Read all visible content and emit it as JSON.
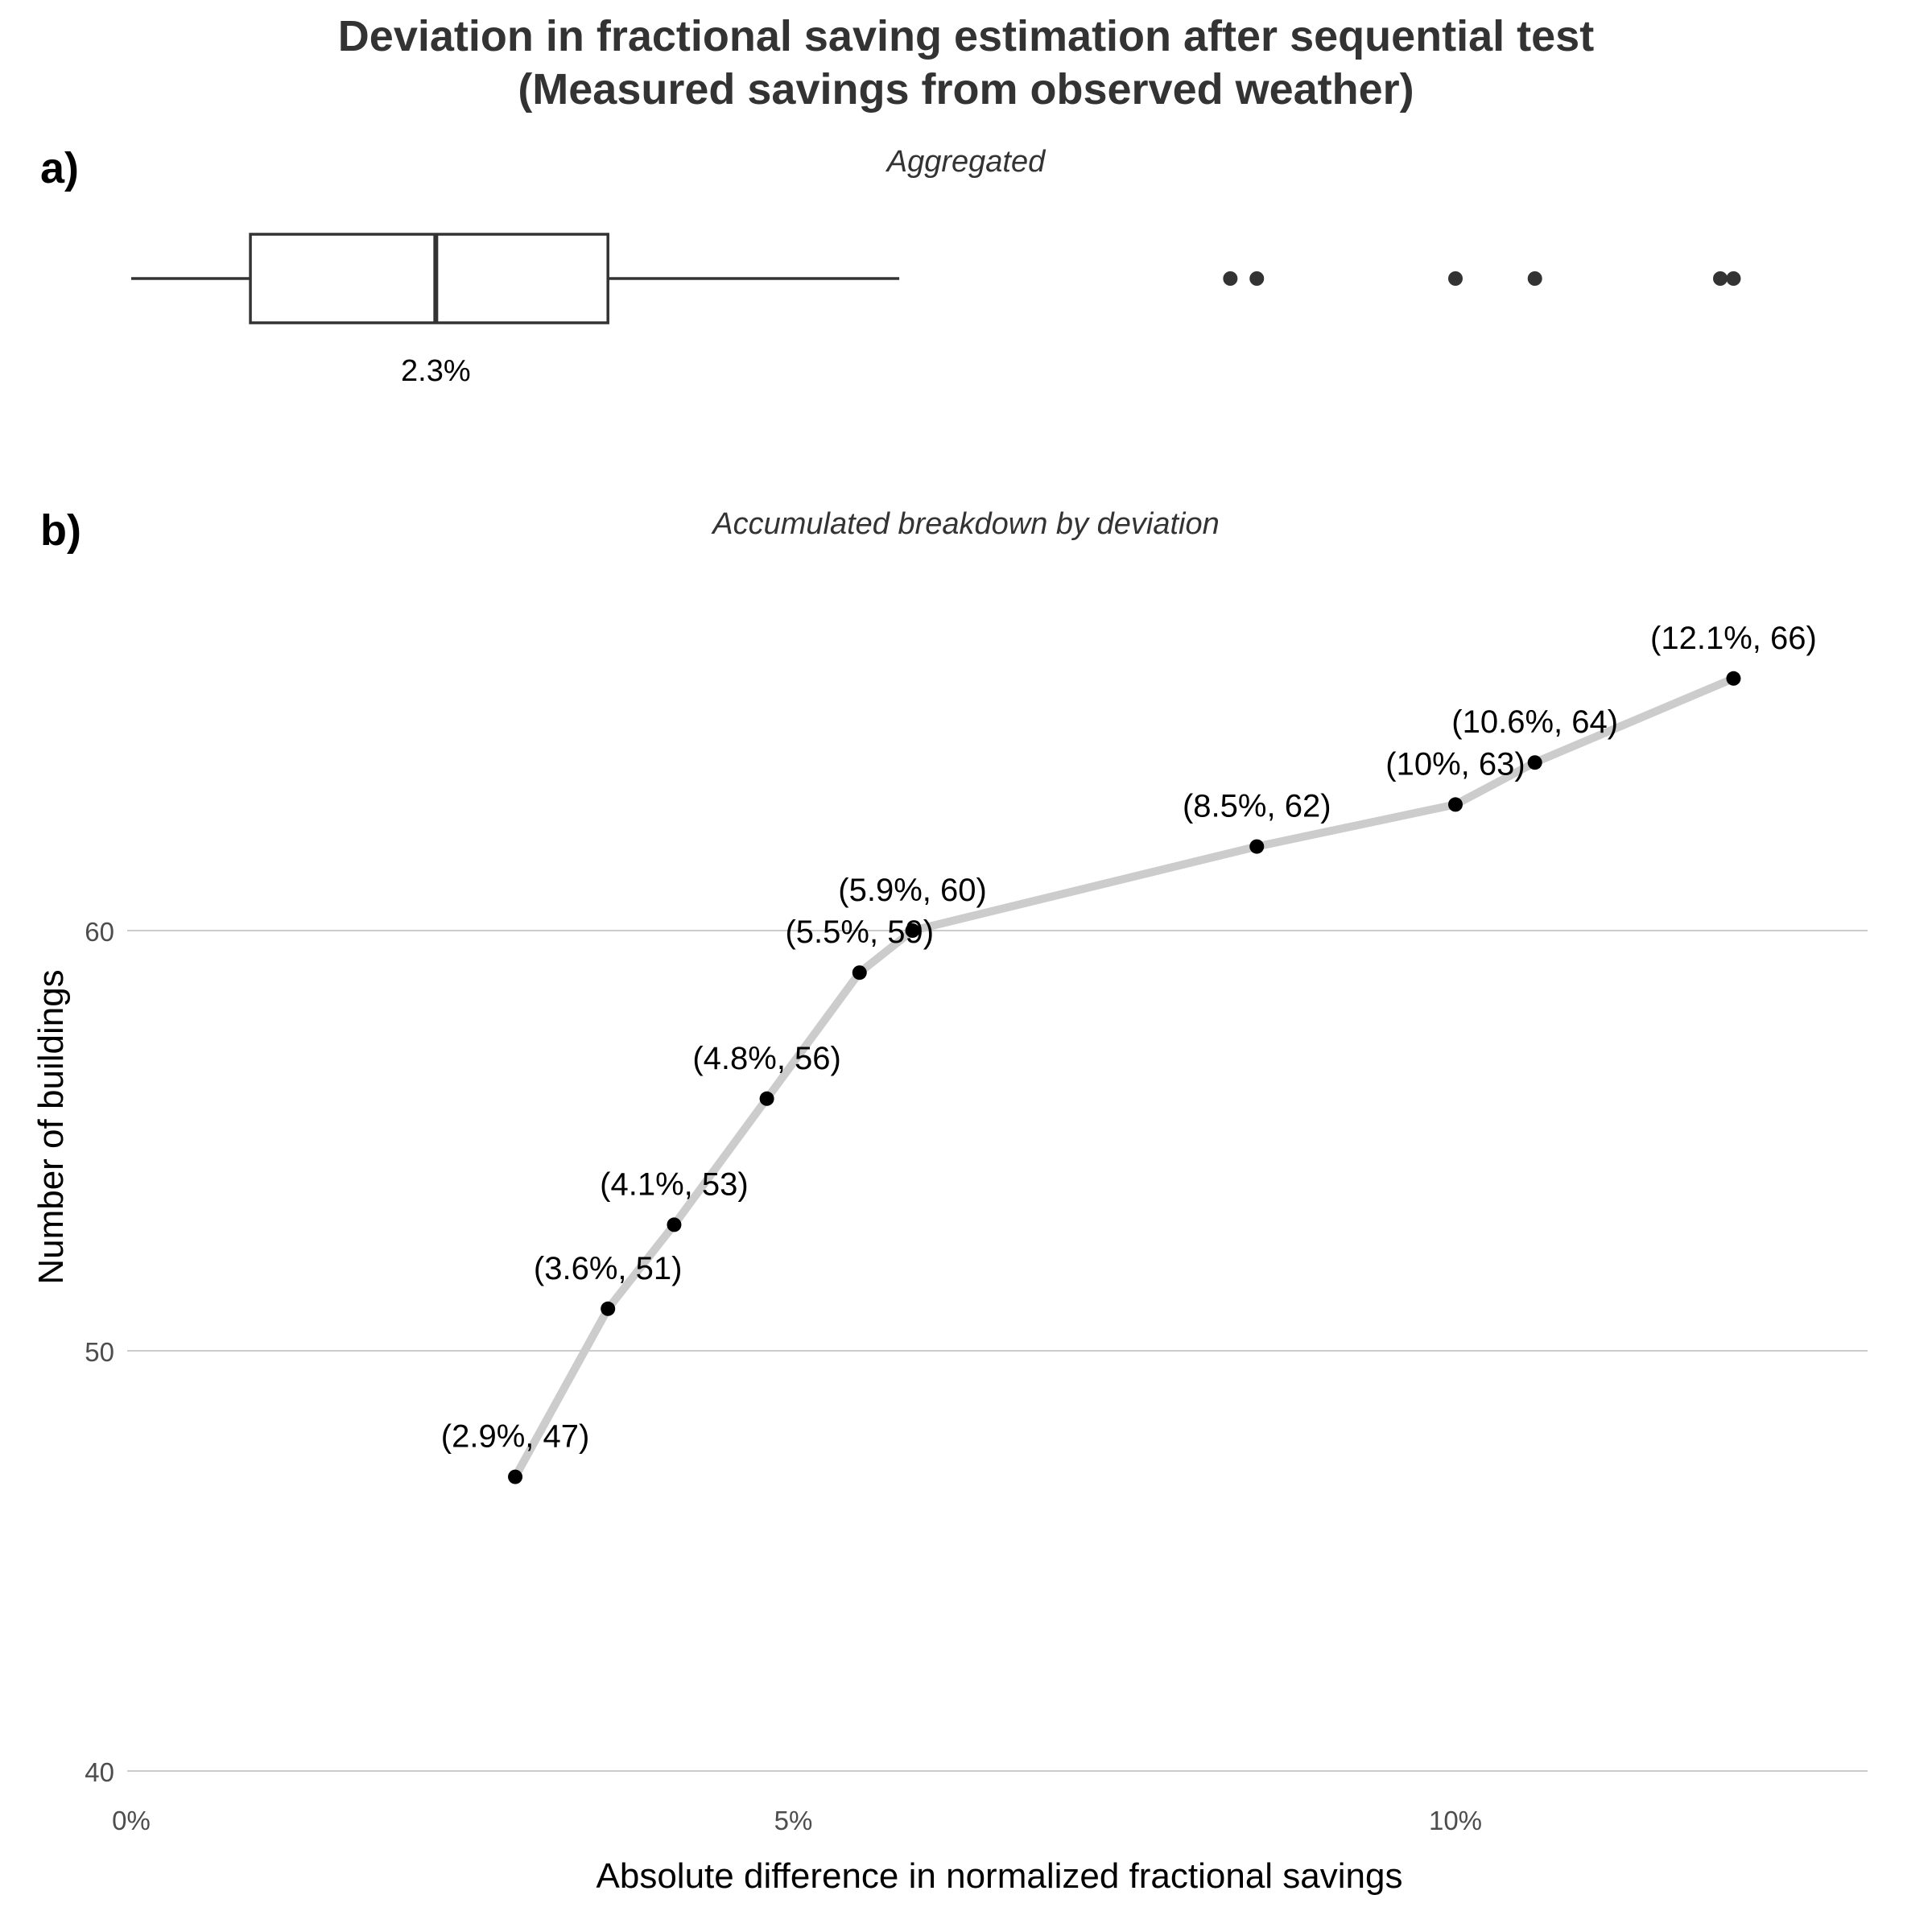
{
  "title_line1": "Deviation in fractional saving estimation after sequential test",
  "title_line2": "(Measured savings from observed weather)",
  "panel_a": {
    "tag": "a)",
    "subtitle": "Aggregated",
    "median_label": "2.3%"
  },
  "panel_b": {
    "tag": "b)",
    "subtitle": "Accumulated breakdown by deviation",
    "xlabel": "Absolute difference in normalized fractional savings",
    "ylabel": "Number of buildings"
  },
  "colors": {
    "text": "#333333",
    "box_stroke": "#333333",
    "line": "#cccccc",
    "point": "#000000",
    "grid": "#cccccc",
    "tick_text": "#4d4d4d"
  },
  "chart_data": [
    {
      "type": "box",
      "title": "Aggregated",
      "x_axis": "shared with panel b",
      "whisker_low": 0.0,
      "q1": 0.9,
      "median": 2.3,
      "q3": 3.6,
      "whisker_high": 5.8,
      "outliers": [
        8.3,
        8.5,
        10.0,
        10.6,
        12.0,
        12.1
      ],
      "median_label": "2.3%"
    },
    {
      "type": "line",
      "title": "Accumulated breakdown by deviation",
      "xlabel": "Absolute difference in normalized fractional savings",
      "ylabel": "Number of buildings",
      "xlim": [
        0,
        13.2
      ],
      "ylim": [
        39.5,
        68.5
      ],
      "x_ticks": [
        0,
        5,
        10
      ],
      "x_tick_labels": [
        "0%",
        "5%",
        "10%"
      ],
      "y_ticks": [
        40,
        50,
        60
      ],
      "y_tick_labels": [
        "40",
        "50",
        "60"
      ],
      "grid": "horizontal major",
      "x": [
        2.9,
        3.6,
        4.1,
        4.8,
        5.5,
        5.9,
        8.5,
        10.0,
        10.6,
        12.1
      ],
      "y": [
        47,
        51,
        53,
        56,
        59,
        60,
        62,
        63,
        64,
        66
      ],
      "labels": [
        "(2.9%, 47)",
        "(3.6%, 51)",
        "(4.1%, 53)",
        "(4.8%, 56)",
        "(5.5%, 59)",
        "(5.9%, 60)",
        "(8.5%, 62)",
        "(10%, 63)",
        "(10.6%, 64)",
        "(12.1%, 66)"
      ]
    }
  ]
}
